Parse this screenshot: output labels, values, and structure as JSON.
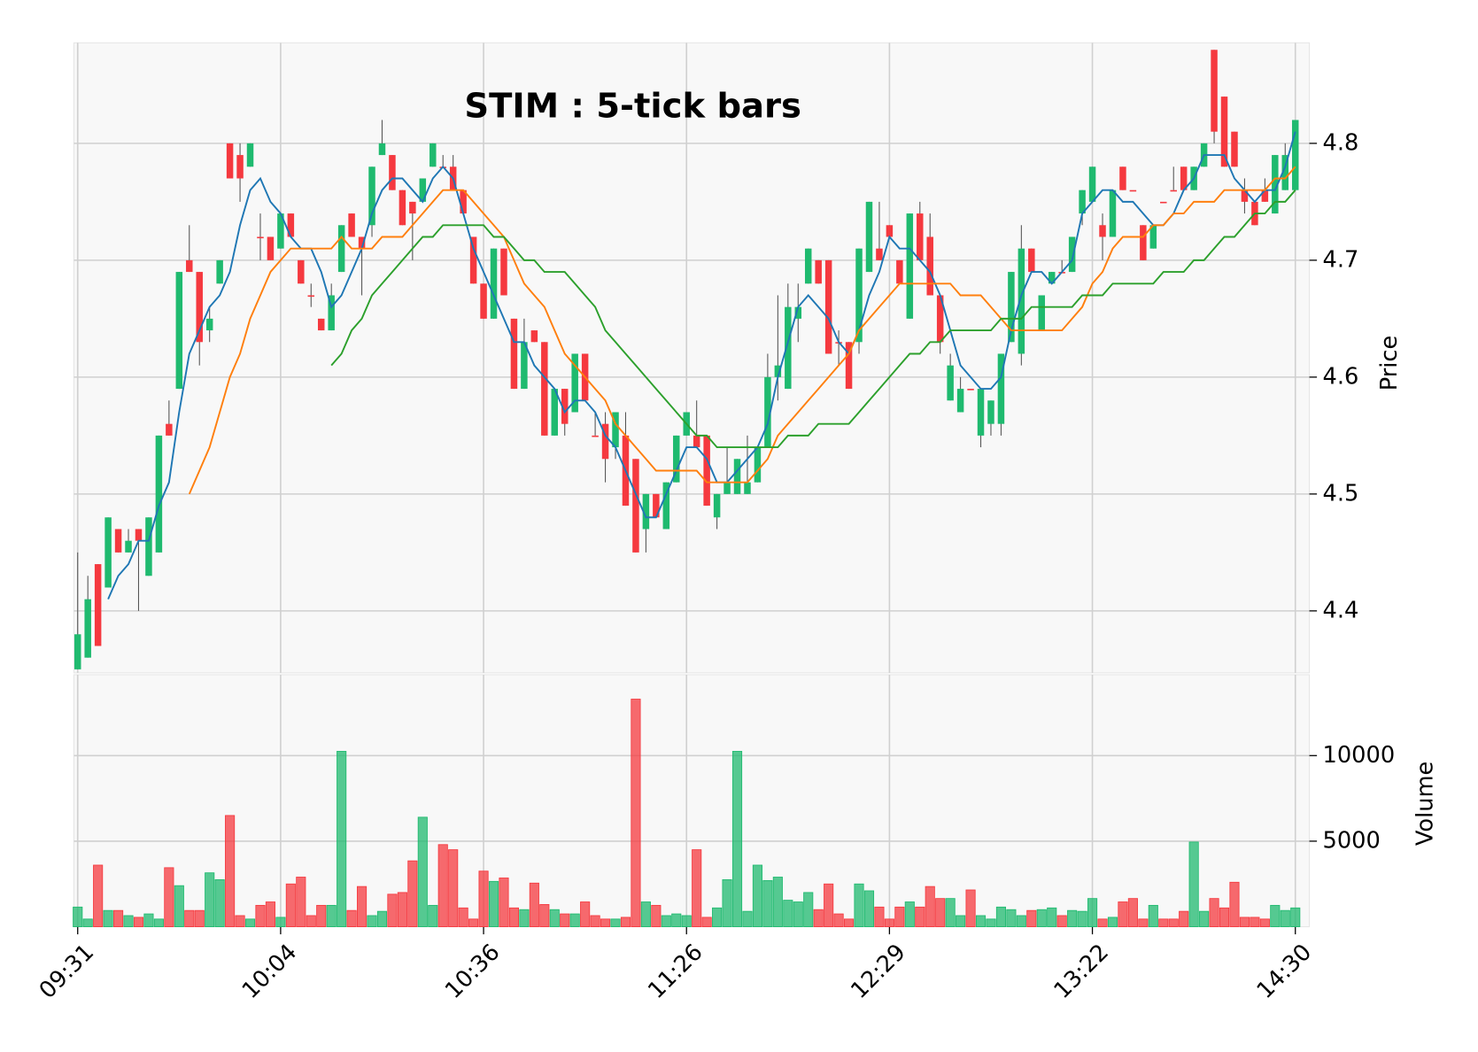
{
  "chart_data": {
    "type": "candlestick",
    "title": "STIM : 5-tick bars",
    "categories": [
      "09:31",
      null,
      null,
      null,
      null,
      null,
      null,
      null,
      null,
      null,
      null,
      null,
      null,
      null,
      null,
      null,
      null,
      null,
      null,
      null,
      "10:04",
      null,
      null,
      null,
      null,
      null,
      null,
      null,
      null,
      null,
      null,
      null,
      null,
      null,
      null,
      null,
      null,
      null,
      null,
      null,
      "10:36",
      null,
      null,
      null,
      null,
      null,
      null,
      null,
      null,
      null,
      null,
      null,
      null,
      null,
      null,
      null,
      null,
      null,
      null,
      null,
      "11:26",
      null,
      null,
      null,
      null,
      null,
      null,
      null,
      null,
      null,
      null,
      null,
      null,
      null,
      null,
      null,
      null,
      null,
      null,
      null,
      "12:29",
      null,
      null,
      null,
      null,
      null,
      null,
      null,
      null,
      null,
      null,
      null,
      null,
      null,
      null,
      null,
      null,
      null,
      null,
      null,
      "13:22",
      null,
      null,
      null,
      null,
      null,
      null,
      null,
      null,
      null,
      null,
      null,
      null,
      null,
      null,
      null,
      null,
      null,
      null,
      null,
      "14:30"
    ],
    "open": [
      4.35,
      4.36,
      4.44,
      4.42,
      4.47,
      4.45,
      4.47,
      4.43,
      4.45,
      4.56,
      4.59,
      4.7,
      4.69,
      4.64,
      4.68,
      4.8,
      4.79,
      4.78,
      4.72,
      4.72,
      4.71,
      4.74,
      4.7,
      4.67,
      4.65,
      4.64,
      4.69,
      4.74,
      4.72,
      4.73,
      4.79,
      4.79,
      4.76,
      4.75,
      4.75,
      4.78,
      4.78,
      4.78,
      4.76,
      4.72,
      4.68,
      4.65,
      4.71,
      4.65,
      4.59,
      4.64,
      4.63,
      4.55,
      4.59,
      4.57,
      4.62,
      4.55,
      4.56,
      4.54,
      4.55,
      4.53,
      4.47,
      4.5,
      4.47,
      4.51,
      4.55,
      4.55,
      4.55,
      4.48,
      4.5,
      4.5,
      4.5,
      4.51,
      4.54,
      4.6,
      4.59,
      4.65,
      4.68,
      4.7,
      4.7,
      4.63,
      4.63,
      4.63,
      4.69,
      4.71,
      4.73,
      4.7,
      4.65,
      4.74,
      4.72,
      4.67,
      4.58,
      4.57,
      4.59,
      4.55,
      4.56,
      4.56,
      4.63,
      4.62,
      4.71,
      4.64,
      4.68,
      4.69,
      4.69,
      4.74,
      4.75,
      4.73,
      4.72,
      4.78,
      4.76,
      4.73,
      4.71,
      4.75,
      4.76,
      4.78,
      4.76,
      4.78,
      4.88,
      4.84,
      4.81,
      4.76,
      4.75,
      4.76,
      4.74,
      4.76,
      4.76
    ],
    "high": [
      4.45,
      4.43,
      4.44,
      4.48,
      4.47,
      4.47,
      4.47,
      4.48,
      4.55,
      4.58,
      4.69,
      4.73,
      4.69,
      4.66,
      4.7,
      4.8,
      4.8,
      4.8,
      4.74,
      4.72,
      4.74,
      4.74,
      4.7,
      4.68,
      4.65,
      4.68,
      4.73,
      4.74,
      4.72,
      4.78,
      4.82,
      4.79,
      4.76,
      4.75,
      4.77,
      4.8,
      4.79,
      4.79,
      4.76,
      4.72,
      4.68,
      4.71,
      4.71,
      4.65,
      4.65,
      4.64,
      4.63,
      4.59,
      4.59,
      4.62,
      4.62,
      4.57,
      4.57,
      4.57,
      4.57,
      4.53,
      4.5,
      4.5,
      4.51,
      4.55,
      4.57,
      4.58,
      4.55,
      4.5,
      4.54,
      4.53,
      4.55,
      4.54,
      4.62,
      4.67,
      4.68,
      4.68,
      4.71,
      4.7,
      4.7,
      4.64,
      4.63,
      4.71,
      4.75,
      4.75,
      4.73,
      4.7,
      4.74,
      4.75,
      4.74,
      4.67,
      4.62,
      4.6,
      4.59,
      4.59,
      4.58,
      4.62,
      4.69,
      4.73,
      4.71,
      4.67,
      4.69,
      4.7,
      4.72,
      4.76,
      4.78,
      4.74,
      4.76,
      4.78,
      4.76,
      4.73,
      4.73,
      4.75,
      4.78,
      4.78,
      4.78,
      4.8,
      4.88,
      4.84,
      4.81,
      4.77,
      4.75,
      4.77,
      4.79,
      4.8,
      4.82
    ],
    "low": [
      4.35,
      4.36,
      4.37,
      4.42,
      4.45,
      4.45,
      4.4,
      4.43,
      4.45,
      4.55,
      4.59,
      4.69,
      4.61,
      4.63,
      4.68,
      4.77,
      4.75,
      4.78,
      4.7,
      4.7,
      4.71,
      4.72,
      4.68,
      4.66,
      4.64,
      4.64,
      4.69,
      4.72,
      4.67,
      4.72,
      4.79,
      4.76,
      4.73,
      4.7,
      4.75,
      4.78,
      4.78,
      4.76,
      4.74,
      4.68,
      4.65,
      4.65,
      4.67,
      4.59,
      4.59,
      4.63,
      4.55,
      4.55,
      4.55,
      4.57,
      4.58,
      4.55,
      4.51,
      4.53,
      4.49,
      4.45,
      4.45,
      4.48,
      4.47,
      4.51,
      4.55,
      4.54,
      4.49,
      4.47,
      4.5,
      4.5,
      4.5,
      4.51,
      4.54,
      4.58,
      4.59,
      4.63,
      4.68,
      4.68,
      4.62,
      4.61,
      4.59,
      4.62,
      4.69,
      4.7,
      4.72,
      4.68,
      4.65,
      4.7,
      4.67,
      4.62,
      4.58,
      4.57,
      4.59,
      4.54,
      4.55,
      4.55,
      4.63,
      4.61,
      4.69,
      4.64,
      4.68,
      4.69,
      4.69,
      4.73,
      4.75,
      4.7,
      4.72,
      4.76,
      4.76,
      4.7,
      4.71,
      4.75,
      4.76,
      4.76,
      4.76,
      4.78,
      4.8,
      4.78,
      4.78,
      4.74,
      4.73,
      4.75,
      4.74,
      4.76,
      4.76
    ],
    "close": [
      4.38,
      4.41,
      4.37,
      4.48,
      4.45,
      4.46,
      4.46,
      4.48,
      4.55,
      4.55,
      4.69,
      4.69,
      4.63,
      4.65,
      4.7,
      4.77,
      4.77,
      4.8,
      4.72,
      4.7,
      4.74,
      4.72,
      4.68,
      4.67,
      4.64,
      4.67,
      4.73,
      4.72,
      4.71,
      4.78,
      4.8,
      4.76,
      4.73,
      4.74,
      4.77,
      4.8,
      4.78,
      4.76,
      4.74,
      4.68,
      4.65,
      4.71,
      4.67,
      4.59,
      4.63,
      4.63,
      4.55,
      4.59,
      4.56,
      4.62,
      4.58,
      4.55,
      4.53,
      4.57,
      4.49,
      4.45,
      4.5,
      4.48,
      4.51,
      4.55,
      4.57,
      4.54,
      4.49,
      4.5,
      4.51,
      4.53,
      4.51,
      4.54,
      4.6,
      4.61,
      4.66,
      4.66,
      4.71,
      4.68,
      4.62,
      4.63,
      4.59,
      4.71,
      4.75,
      4.7,
      4.72,
      4.68,
      4.74,
      4.7,
      4.67,
      4.63,
      4.61,
      4.59,
      4.59,
      4.59,
      4.58,
      4.62,
      4.69,
      4.71,
      4.69,
      4.67,
      4.69,
      4.69,
      4.72,
      4.76,
      4.78,
      4.72,
      4.76,
      4.76,
      4.76,
      4.7,
      4.73,
      4.75,
      4.76,
      4.76,
      4.78,
      4.8,
      4.81,
      4.78,
      4.78,
      4.75,
      4.73,
      4.75,
      4.79,
      4.79,
      4.82
    ],
    "up_color": "#1fba6f",
    "down_color": "#f5393f",
    "ylabel": "Price",
    "ylim": [
      4.347,
      4.886
    ],
    "yticks": [
      4.4,
      4.5,
      4.6,
      4.7,
      4.8
    ],
    "grid": true,
    "moving_averages": [
      {
        "color": "#1f77b4",
        "values": [
          null,
          null,
          null,
          4.41,
          4.43,
          4.44,
          4.46,
          4.46,
          4.49,
          4.51,
          4.57,
          4.62,
          4.64,
          4.66,
          4.67,
          4.69,
          4.73,
          4.76,
          4.77,
          4.75,
          4.74,
          4.72,
          4.71,
          4.71,
          4.69,
          4.66,
          4.67,
          4.69,
          4.71,
          4.74,
          4.76,
          4.77,
          4.77,
          4.76,
          4.75,
          4.77,
          4.78,
          4.77,
          4.74,
          4.71,
          4.69,
          4.67,
          4.65,
          4.63,
          4.63,
          4.61,
          4.6,
          4.59,
          4.57,
          4.58,
          4.58,
          4.57,
          4.55,
          4.54,
          4.52,
          4.5,
          4.48,
          4.48,
          4.5,
          4.52,
          4.54,
          4.54,
          4.53,
          4.51,
          4.51,
          4.52,
          4.53,
          4.54,
          4.56,
          4.6,
          4.63,
          4.66,
          4.67,
          4.66,
          4.65,
          4.63,
          4.62,
          4.64,
          4.67,
          4.69,
          4.72,
          4.71,
          4.71,
          4.7,
          4.69,
          4.67,
          4.64,
          4.61,
          4.6,
          4.59,
          4.59,
          4.6,
          4.64,
          4.67,
          4.69,
          4.69,
          4.68,
          4.69,
          4.7,
          4.74,
          4.75,
          4.76,
          4.76,
          4.75,
          4.75,
          4.74,
          4.73,
          4.73,
          4.74,
          4.76,
          4.77,
          4.79,
          4.79,
          4.79,
          4.77,
          4.76,
          4.75,
          4.76,
          4.76,
          4.78,
          4.81
        ]
      },
      {
        "color": "#ff7f0e",
        "values": [
          null,
          null,
          null,
          null,
          null,
          null,
          null,
          null,
          null,
          null,
          null,
          4.5,
          4.52,
          4.54,
          4.57,
          4.6,
          4.62,
          4.65,
          4.67,
          4.69,
          4.7,
          4.71,
          4.71,
          4.71,
          4.71,
          4.71,
          4.72,
          4.71,
          4.71,
          4.71,
          4.72,
          4.72,
          4.72,
          4.73,
          4.74,
          4.75,
          4.76,
          4.76,
          4.76,
          4.75,
          4.74,
          4.73,
          4.72,
          4.7,
          4.68,
          4.67,
          4.66,
          4.64,
          4.62,
          4.61,
          4.6,
          4.59,
          4.58,
          4.56,
          4.55,
          4.54,
          4.53,
          4.52,
          4.52,
          4.52,
          4.52,
          4.52,
          4.51,
          4.51,
          4.51,
          4.51,
          4.51,
          4.52,
          4.53,
          4.55,
          4.56,
          4.57,
          4.58,
          4.59,
          4.6,
          4.61,
          4.62,
          4.64,
          4.65,
          4.66,
          4.67,
          4.68,
          4.68,
          4.68,
          4.68,
          4.68,
          4.68,
          4.67,
          4.67,
          4.67,
          4.66,
          4.65,
          4.64,
          4.64,
          4.64,
          4.64,
          4.64,
          4.64,
          4.65,
          4.66,
          4.68,
          4.69,
          4.71,
          4.72,
          4.72,
          4.72,
          4.73,
          4.73,
          4.74,
          4.74,
          4.75,
          4.75,
          4.75,
          4.76,
          4.76,
          4.76,
          4.76,
          4.76,
          4.77,
          4.77,
          4.78
        ]
      },
      {
        "color": "#2ca02c",
        "values": [
          null,
          null,
          null,
          null,
          null,
          null,
          null,
          null,
          null,
          null,
          null,
          null,
          null,
          null,
          null,
          null,
          null,
          null,
          null,
          null,
          null,
          null,
          null,
          null,
          null,
          4.61,
          4.62,
          4.64,
          4.65,
          4.67,
          4.68,
          4.69,
          4.7,
          4.71,
          4.72,
          4.72,
          4.73,
          4.73,
          4.73,
          4.73,
          4.73,
          4.72,
          4.72,
          4.71,
          4.7,
          4.7,
          4.69,
          4.69,
          4.69,
          4.68,
          4.67,
          4.66,
          4.64,
          4.63,
          4.62,
          4.61,
          4.6,
          4.59,
          4.58,
          4.57,
          4.56,
          4.55,
          4.55,
          4.54,
          4.54,
          4.54,
          4.54,
          4.54,
          4.54,
          4.54,
          4.55,
          4.55,
          4.55,
          4.56,
          4.56,
          4.56,
          4.56,
          4.57,
          4.58,
          4.59,
          4.6,
          4.61,
          4.62,
          4.62,
          4.63,
          4.63,
          4.64,
          4.64,
          4.64,
          4.64,
          4.64,
          4.65,
          4.65,
          4.65,
          4.66,
          4.66,
          4.66,
          4.66,
          4.66,
          4.67,
          4.67,
          4.67,
          4.68,
          4.68,
          4.68,
          4.68,
          4.68,
          4.69,
          4.69,
          4.69,
          4.7,
          4.7,
          4.71,
          4.72,
          4.72,
          4.73,
          4.74,
          4.74,
          4.75,
          4.75,
          4.76
        ]
      }
    ],
    "volume": {
      "label": "Volume",
      "ylim": [
        0,
        14725
      ],
      "yticks": [
        5000,
        10000
      ],
      "values": [
        1150,
        450,
        3600,
        950,
        950,
        650,
        550,
        750,
        450,
        3450,
        2400,
        950,
        950,
        3150,
        2750,
        6500,
        650,
        450,
        1250,
        1450,
        550,
        2500,
        2900,
        650,
        1250,
        1250,
        10250,
        950,
        2350,
        650,
        900,
        1900,
        2000,
        3850,
        6400,
        1250,
        4800,
        4500,
        1100,
        450,
        3250,
        2650,
        2850,
        1100,
        1000,
        2550,
        1300,
        1000,
        750,
        750,
        1450,
        650,
        450,
        450,
        550,
        13300,
        1450,
        1250,
        650,
        750,
        650,
        4500,
        550,
        1100,
        2750,
        10250,
        900,
        3600,
        2700,
        2900,
        1550,
        1450,
        2000,
        1000,
        2500,
        750,
        450,
        2500,
        2100,
        1150,
        450,
        1150,
        1450,
        1150,
        2350,
        1650,
        1650,
        650,
        2150,
        650,
        450,
        1150,
        1000,
        650,
        950,
        1000,
        1100,
        650,
        950,
        900,
        1650,
        450,
        550,
        1450,
        1650,
        450,
        1250,
        450,
        450,
        900,
        4950,
        900,
        1650,
        1100,
        2600,
        550,
        550,
        450,
        1250,
        950,
        1100
      ]
    }
  }
}
